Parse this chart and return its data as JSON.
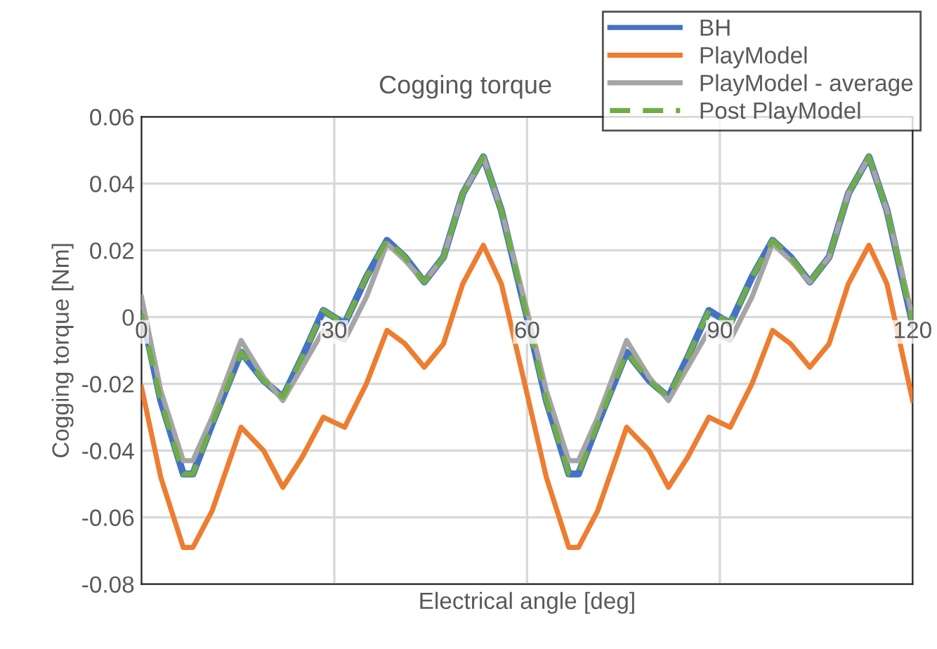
{
  "chart_data": {
    "type": "line",
    "title": "Cogging torque",
    "xlabel": "Electrical angle [deg]",
    "ylabel": "Cogging torque [Nm]",
    "xlim": [
      0,
      120
    ],
    "xticks": [
      0,
      30,
      60,
      90,
      120
    ],
    "ylim": [
      -0.08,
      0.06
    ],
    "yticks": [
      {
        "value": -0.08,
        "label": "-0.08"
      },
      {
        "value": -0.06,
        "label": "-0.06"
      },
      {
        "value": -0.04,
        "label": "-0.04"
      },
      {
        "value": -0.02,
        "label": "-0.02"
      },
      {
        "value": 0,
        "label": "0"
      },
      {
        "value": 0.02,
        "label": "0.02"
      },
      {
        "value": 0.04,
        "label": "0.04"
      },
      {
        "value": 0.06,
        "label": "0.06"
      }
    ],
    "grid": true,
    "legend": "top right",
    "marker": "none",
    "x": [
      0,
      3,
      6.5,
      8,
      11,
      15.5,
      19,
      22,
      25,
      28.3,
      31.6,
      35,
      38.2,
      41,
      44,
      47,
      50,
      53.2,
      56,
      60,
      63,
      66.5,
      68,
      71,
      75.5,
      79,
      82,
      85,
      88.3,
      91.6,
      95,
      98.2,
      101,
      104,
      107,
      110,
      113.2,
      116,
      120
    ],
    "series": [
      {
        "name": "BH",
        "color": "#4472c4",
        "line_style": "solid",
        "values": [
          0.002,
          -0.025,
          -0.047,
          -0.047,
          -0.032,
          -0.0105,
          -0.019,
          -0.024,
          -0.012,
          0.002,
          -0.002,
          0.012,
          0.023,
          0.018,
          0.0105,
          0.018,
          0.037,
          0.048,
          0.032,
          0.0,
          -0.025,
          -0.047,
          -0.047,
          -0.032,
          -0.0105,
          -0.019,
          -0.024,
          -0.012,
          0.002,
          -0.002,
          0.012,
          0.023,
          0.018,
          0.0105,
          0.018,
          0.037,
          0.048,
          0.032,
          -0.002
        ]
      },
      {
        "name": "PlayModel",
        "color": "#ed7d31",
        "line_style": "solid",
        "values": [
          -0.021,
          -0.048,
          -0.069,
          -0.069,
          -0.058,
          -0.033,
          -0.04,
          -0.051,
          -0.042,
          -0.03,
          -0.033,
          -0.02,
          -0.004,
          -0.008,
          -0.015,
          -0.008,
          0.01,
          0.0215,
          0.01,
          -0.023,
          -0.048,
          -0.069,
          -0.069,
          -0.058,
          -0.033,
          -0.04,
          -0.051,
          -0.042,
          -0.03,
          -0.033,
          -0.02,
          -0.004,
          -0.008,
          -0.015,
          -0.008,
          0.01,
          0.0215,
          0.01,
          -0.025
        ]
      },
      {
        "name": "PlayModel - average",
        "color": "#a5a5a5",
        "line_style": "solid",
        "values": [
          0.006,
          -0.022,
          -0.043,
          -0.043,
          -0.03,
          -0.007,
          -0.018,
          -0.025,
          -0.015,
          -0.004,
          -0.007,
          0.006,
          0.022,
          0.017,
          0.0105,
          0.018,
          0.037,
          0.048,
          0.032,
          0.002,
          -0.022,
          -0.043,
          -0.043,
          -0.03,
          -0.007,
          -0.018,
          -0.025,
          -0.015,
          -0.004,
          -0.007,
          0.006,
          0.022,
          0.017,
          0.0105,
          0.018,
          0.037,
          0.048,
          0.032,
          0.0
        ]
      },
      {
        "name": "Post PlayModel",
        "color": "#70ad47",
        "line_style": "dashed",
        "values": [
          0.001,
          -0.025,
          -0.047,
          -0.047,
          -0.032,
          -0.0105,
          -0.019,
          -0.024,
          -0.012,
          0.002,
          -0.002,
          0.012,
          0.023,
          0.018,
          0.0105,
          0.018,
          0.037,
          0.048,
          0.032,
          0.0,
          -0.025,
          -0.047,
          -0.047,
          -0.032,
          -0.0105,
          -0.019,
          -0.024,
          -0.012,
          0.002,
          -0.002,
          0.012,
          0.023,
          0.018,
          0.0105,
          0.018,
          0.037,
          0.048,
          0.032,
          -0.002
        ]
      }
    ]
  }
}
